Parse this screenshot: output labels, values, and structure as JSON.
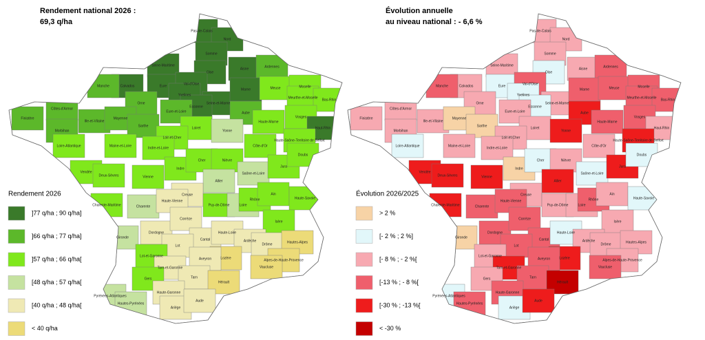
{
  "maps": [
    {
      "title_line1": "Rendement national 2026 :",
      "title_line2": "69,3 q/ha",
      "legend_title": "Rendement 2026",
      "classes": [
        {
          "label": "]77 q/ha ; 90 q/ha]",
          "color": "#3a7a2a"
        },
        {
          "label": "]66 q/ha ; 77 q/ha]",
          "color": "#5cb82a"
        },
        {
          "label": "]57 q/ha ; 66 q/ha[",
          "color": "#80e81c"
        },
        {
          "label": "[48 q/ha ; 57 q/ha[",
          "color": "#c5e2a0"
        },
        {
          "label": "[40 q/ha ; 48 q/ha[",
          "color": "#efe9b4"
        },
        {
          "label": "< 40 q/ha",
          "color": "#ecdb78"
        }
      ]
    },
    {
      "title_line1": "Évolution annuelle",
      "title_line2": "au niveau national : - 6,6 %",
      "legend_title": "Évolution 2026/2025",
      "classes": [
        {
          "label": "> 2 %",
          "color": "#f7d3a6"
        },
        {
          "label": "[- 2 % ; 2 %]",
          "color": "#e2f7fa"
        },
        {
          "label": "[- 8 % ; - 2 %[",
          "color": "#f7a9b1"
        },
        {
          "label": "[-13 % ; - 8 %[",
          "color": "#ef5f6c"
        },
        {
          "label": "[-30 % ; -13 %[",
          "color": "#ee1c1c"
        },
        {
          "label": "< -30 %",
          "color": "#c40000"
        }
      ]
    }
  ],
  "departments": [
    {
      "name": "Pas-de-Calais",
      "yield_class": 0,
      "change_class": 2
    },
    {
      "name": "Nord",
      "yield_class": 0,
      "change_class": 2
    },
    {
      "name": "Somme",
      "yield_class": 0,
      "change_class": 2
    },
    {
      "name": "Seine-Maritime",
      "yield_class": 0,
      "change_class": 2
    },
    {
      "name": "Aisne",
      "yield_class": 0,
      "change_class": 2
    },
    {
      "name": "Oise",
      "yield_class": 0,
      "change_class": 1
    },
    {
      "name": "Ardennes",
      "yield_class": 1,
      "change_class": 3
    },
    {
      "name": "Calvados",
      "yield_class": 0,
      "change_class": 2
    },
    {
      "name": "Manche",
      "yield_class": 1,
      "change_class": 3
    },
    {
      "name": "Eure",
      "yield_class": 0,
      "change_class": 1
    },
    {
      "name": "Val-d'Oise",
      "yield_class": 0,
      "change_class": 3
    },
    {
      "name": "Yvelines",
      "yield_class": 0,
      "change_class": 1
    },
    {
      "name": "Seine-et-Marne",
      "yield_class": 0,
      "change_class": 2
    },
    {
      "name": "Essonne",
      "yield_class": 0,
      "change_class": 1
    },
    {
      "name": "Marne",
      "yield_class": 0,
      "change_class": 3
    },
    {
      "name": "Meuse",
      "yield_class": 2,
      "change_class": 3
    },
    {
      "name": "Moselle",
      "yield_class": 2,
      "change_class": 3
    },
    {
      "name": "Meurthe-et-Moselle",
      "yield_class": 2,
      "change_class": 3
    },
    {
      "name": "Bas-Rhin",
      "yield_class": 2,
      "change_class": 3
    },
    {
      "name": "Côtes-d'Armor",
      "yield_class": 1,
      "change_class": 2
    },
    {
      "name": "Finistère",
      "yield_class": 1,
      "change_class": 2
    },
    {
      "name": "Ille-et-Vilaine",
      "yield_class": 1,
      "change_class": 2
    },
    {
      "name": "Morbihan",
      "yield_class": 1,
      "change_class": 2
    },
    {
      "name": "Orne",
      "yield_class": 1,
      "change_class": 2
    },
    {
      "name": "Eure-et-Loire",
      "yield_class": 1,
      "change_class": 2
    },
    {
      "name": "Mayenne",
      "yield_class": 1,
      "change_class": 0
    },
    {
      "name": "Sarthe",
      "yield_class": 1,
      "change_class": 0
    },
    {
      "name": "Aube",
      "yield_class": 1,
      "change_class": 4
    },
    {
      "name": "Haute-Marne",
      "yield_class": 2,
      "change_class": 3
    },
    {
      "name": "Vosges",
      "yield_class": 2,
      "change_class": 3
    },
    {
      "name": "Haut-Rhin",
      "yield_class": 0,
      "change_class": 2
    },
    {
      "name": "Loiret",
      "yield_class": 2,
      "change_class": 2
    },
    {
      "name": "Yonne",
      "yield_class": 3,
      "change_class": 4
    },
    {
      "name": "Loire-Atlantique",
      "yield_class": 2,
      "change_class": 1
    },
    {
      "name": "Maine-et-Loire",
      "yield_class": 2,
      "change_class": 2
    },
    {
      "name": "Loir-et-Cher",
      "yield_class": 2,
      "change_class": 2
    },
    {
      "name": "Indre-et-Loire",
      "yield_class": 2,
      "change_class": 2
    },
    {
      "name": "Côte-d'Or",
      "yield_class": 2,
      "change_class": 2
    },
    {
      "name": "Haute-Saône-Territoire de Belfort",
      "yield_class": 2,
      "change_class": 4
    },
    {
      "name": "Vendée",
      "yield_class": 2,
      "change_class": 4
    },
    {
      "name": "Deux-Sèvres",
      "yield_class": 2,
      "change_class": 4
    },
    {
      "name": "Vienne",
      "yield_class": 2,
      "change_class": 4
    },
    {
      "name": "Indre",
      "yield_class": 2,
      "change_class": 0
    },
    {
      "name": "Cher",
      "yield_class": 2,
      "change_class": 1
    },
    {
      "name": "Nièvre",
      "yield_class": 2,
      "change_class": 2
    },
    {
      "name": "Saône-et-Loire",
      "yield_class": 3,
      "change_class": 1
    },
    {
      "name": "Jura",
      "yield_class": 2,
      "change_class": 4
    },
    {
      "name": "Doubs",
      "yield_class": 2,
      "change_class": 1
    },
    {
      "name": "Allier",
      "yield_class": 3,
      "change_class": 4
    },
    {
      "name": "Creuse",
      "yield_class": 4,
      "change_class": 2
    },
    {
      "name": "Charente-Maritime",
      "yield_class": 2,
      "change_class": 4
    },
    {
      "name": "Charente",
      "yield_class": 3,
      "change_class": 3
    },
    {
      "name": "Haute-Vienne",
      "yield_class": 4,
      "change_class": 3
    },
    {
      "name": "Puy-de-Dôme",
      "yield_class": 2,
      "change_class": 2
    },
    {
      "name": "Loire",
      "yield_class": 3,
      "change_class": 2
    },
    {
      "name": "Rhône",
      "yield_class": 2,
      "change_class": 3
    },
    {
      "name": "Ain",
      "yield_class": 2,
      "change_class": 2
    },
    {
      "name": "Haute-Savoie",
      "yield_class": 2,
      "change_class": 1
    },
    {
      "name": "Dordogne",
      "yield_class": 4,
      "change_class": 3
    },
    {
      "name": "Corrèze",
      "yield_class": 4,
      "change_class": 3
    },
    {
      "name": "Gironde",
      "yield_class": 3,
      "change_class": 0
    },
    {
      "name": "Cantal",
      "yield_class": 4,
      "change_class": 3
    },
    {
      "name": "Haute-Loire",
      "yield_class": 4,
      "change_class": 1
    },
    {
      "name": "Isère",
      "yield_class": 2,
      "change_class": 2
    },
    {
      "name": "Ardèche",
      "yield_class": 4,
      "change_class": 2
    },
    {
      "name": "Drôme",
      "yield_class": 4,
      "change_class": 2
    },
    {
      "name": "Hautes-Alpes",
      "yield_class": 5,
      "change_class": 2
    },
    {
      "name": "Lot",
      "yield_class": 4,
      "change_class": 3
    },
    {
      "name": "Lozère",
      "yield_class": 5,
      "change_class": 4
    },
    {
      "name": "Aveyron",
      "yield_class": 4,
      "change_class": 3
    },
    {
      "name": "Lot-et-Garonne",
      "yield_class": 2,
      "change_class": 2
    },
    {
      "name": "Tarn-et-Garonne",
      "yield_class": 4,
      "change_class": 4
    },
    {
      "name": "Alpes-de-Haute-Provence",
      "yield_class": 5,
      "change_class": 2
    },
    {
      "name": "Gers",
      "yield_class": 2,
      "change_class": 2
    },
    {
      "name": "Tarn",
      "yield_class": 4,
      "change_class": 3
    },
    {
      "name": "Hérault",
      "yield_class": 5,
      "change_class": 5
    },
    {
      "name": "Vaucluse",
      "yield_class": 5,
      "change_class": 3
    },
    {
      "name": "Haute-Garonne",
      "yield_class": 4,
      "change_class": 3
    },
    {
      "name": "Pyrénées-Atlantiques",
      "yield_class": 3,
      "change_class": 1
    },
    {
      "name": "Hautes-Pyrénées",
      "yield_class": 3,
      "change_class": 3
    },
    {
      "name": "Ariège",
      "yield_class": 4,
      "change_class": 1
    },
    {
      "name": "Aude",
      "yield_class": 4,
      "change_class": 4
    }
  ]
}
